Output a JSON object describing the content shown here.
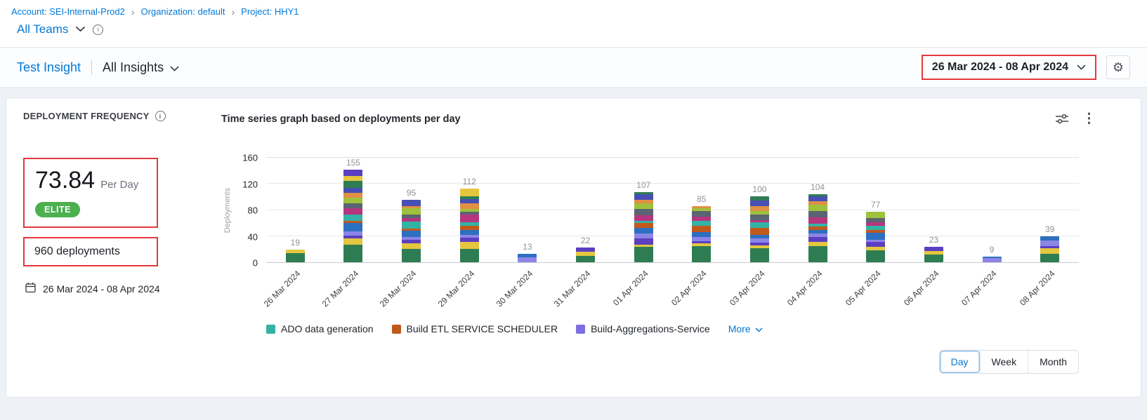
{
  "colors": {
    "accent": "#0278d5",
    "annotation_red": "#e5383b",
    "badge_green": "#4caf50"
  },
  "breadcrumb": {
    "items": [
      {
        "label": "Account: SEI-Internal-Prod2"
      },
      {
        "label": "Organization: default"
      },
      {
        "label": "Project: HHY1"
      }
    ]
  },
  "teams_selector": {
    "label": "All Teams"
  },
  "toolbar": {
    "insight_name": "Test Insight",
    "insights_dropdown": "All Insights",
    "date_range": "26 Mar 2024  -  08 Apr 2024"
  },
  "widget": {
    "title": "DEPLOYMENT FREQUENCY",
    "metric_value": "73.84",
    "metric_unit": "Per Day",
    "badge": "ELITE",
    "deployments_total": "960 deployments",
    "date_range": "26 Mar 2024 - 08 Apr 2024"
  },
  "chart_data": {
    "type": "bar",
    "stacked": true,
    "title": "Time series graph based on deployments per day",
    "xlabel": "",
    "ylabel": "Deployments",
    "ylim": [
      0,
      160
    ],
    "yticks": [
      0,
      40,
      80,
      120,
      160
    ],
    "grid": true,
    "legend_position": "bottom",
    "categories": [
      "26 Mar 2024",
      "27 Mar 2024",
      "28 Mar 2024",
      "29 Mar 2024",
      "30 Mar 2024",
      "31 Mar 2024",
      "01 Apr 2024",
      "02 Apr 2024",
      "03 Apr 2024",
      "04 Apr 2024",
      "05 Apr 2024",
      "06 Apr 2024",
      "07 Apr 2024",
      "08 Apr 2024"
    ],
    "values": [
      19,
      155,
      95,
      112,
      13,
      22,
      107,
      85,
      100,
      104,
      77,
      23,
      9,
      39
    ],
    "legend": [
      {
        "label": "ADO data generation",
        "color": "#33b3a6"
      },
      {
        "label": "Build ETL SERVICE SCHEDULER",
        "color": "#bf5917"
      },
      {
        "label": "Build-Aggregations-Service",
        "color": "#7d6fe2"
      }
    ],
    "more_label": "More",
    "palette": [
      "#2e7d52",
      "#e4c63f",
      "#5b3fc0",
      "#8d85e6",
      "#2d6fc0",
      "#c05a1c",
      "#33b3a6",
      "#b5367f",
      "#5b6472",
      "#9fc13c",
      "#e09044",
      "#474fb5"
    ]
  },
  "granularity": {
    "options": [
      "Day",
      "Week",
      "Month"
    ],
    "selected": "Day"
  }
}
